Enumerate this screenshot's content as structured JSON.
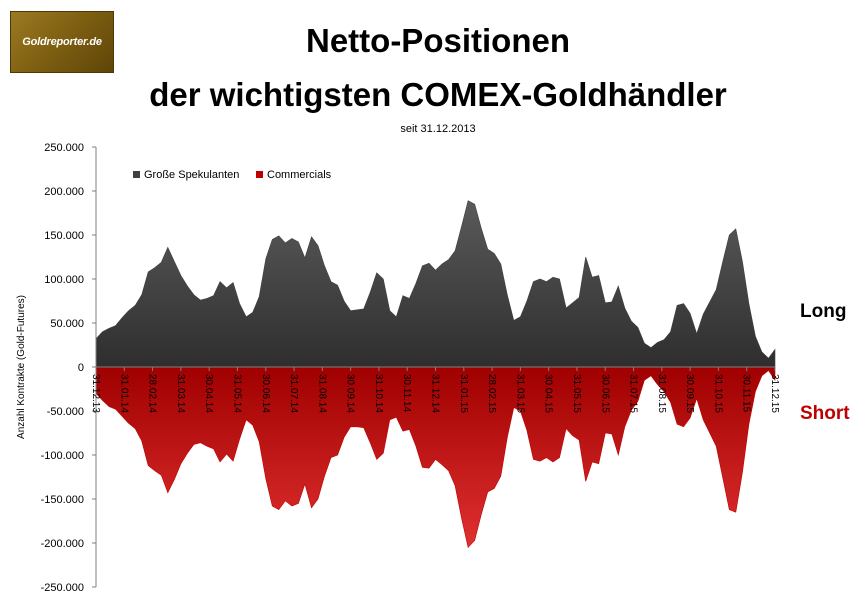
{
  "logo": {
    "text": "Goldreporter.de"
  },
  "title_line1": "Netto-Positionen",
  "title_line2": "der wichtigsten COMEX-Goldhändler",
  "subtitle": "seit 31.12.2013",
  "long_label": "Long",
  "short_label": "Short",
  "colors": {
    "long": "#404040",
    "short": "#c00000",
    "short_label": "#c00000"
  },
  "chart_data": {
    "type": "area",
    "title": "Netto-Positionen der wichtigsten COMEX-Goldhändler",
    "subtitle": "seit 31.12.2013",
    "ylabel": "Anzahl Kontrakte  (Gold-Futures)",
    "ylim": [
      -250000,
      250000
    ],
    "yticks": [
      "250.000",
      "200.000",
      "150.000",
      "100.000",
      "50.000",
      "0",
      "-50.000",
      "-100.000",
      "-150.000",
      "-200.000",
      "-250.000"
    ],
    "ytick_values": [
      250000,
      200000,
      150000,
      100000,
      50000,
      0,
      -50000,
      -100000,
      -150000,
      -200000,
      -250000
    ],
    "xtick_labels": [
      "31.12.13",
      "31.01.14",
      "28.02.14",
      "31.03.14",
      "30.04.14",
      "31.05.14",
      "30.06.14",
      "31.07.14",
      "31.08.14",
      "30.09.14",
      "31.10.14",
      "30.11.14",
      "31.12.14",
      "31.01.15",
      "28.02.15",
      "31.03.15",
      "30.04.15",
      "31.05.15",
      "30.06.15",
      "31.07.15",
      "31.08.15",
      "30.09.15",
      "31.10.15",
      "30.11.15",
      "31.12.15"
    ],
    "legend": [
      "Große Spekulanten",
      "Commercials"
    ],
    "legend_position": "top-left",
    "grid": false,
    "x_weeks": [
      0,
      1,
      2,
      3,
      4,
      5,
      6,
      7,
      8,
      9,
      10,
      11,
      12,
      13,
      14,
      15,
      16,
      17,
      18,
      19,
      20,
      21,
      22,
      23,
      24,
      25,
      26,
      27,
      28,
      29,
      30,
      31,
      32,
      33,
      34,
      35,
      36,
      37,
      38,
      39,
      40,
      41,
      42,
      43,
      44,
      45,
      46,
      47,
      48,
      49,
      50,
      51,
      52,
      53,
      54,
      55,
      56,
      57,
      58,
      59,
      60,
      61,
      62,
      63,
      64,
      65,
      66,
      67,
      68,
      69,
      70,
      71,
      72,
      73,
      74,
      75,
      76,
      77,
      78,
      79,
      80,
      81,
      82,
      83,
      84,
      85,
      86,
      87,
      88,
      89,
      90,
      91,
      92,
      93,
      94,
      95,
      96,
      97,
      98,
      99,
      100,
      101,
      102,
      103,
      104
    ],
    "series": [
      {
        "name": "Große Spekulanten",
        "values": [
          32000,
          40000,
          44000,
          47000,
          56000,
          64000,
          70000,
          82000,
          108000,
          113000,
          119000,
          136000,
          120000,
          104000,
          92000,
          82000,
          76000,
          78000,
          81000,
          97000,
          90000,
          96000,
          72000,
          57000,
          62000,
          80000,
          123000,
          145000,
          149000,
          141000,
          146000,
          142000,
          124000,
          148000,
          138000,
          115000,
          97000,
          93000,
          75000,
          64000,
          65000,
          66000,
          85000,
          107000,
          100000,
          64000,
          57000,
          81000,
          78000,
          95000,
          115000,
          118000,
          110000,
          117000,
          122000,
          132000,
          160000,
          189000,
          185000,
          158000,
          134000,
          129000,
          117000,
          82000,
          53000,
          57000,
          75000,
          97000,
          100000,
          97000,
          102000,
          100000,
          67000,
          73000,
          79000,
          125000,
          102000,
          104000,
          73000,
          74000,
          92000,
          67000,
          52000,
          45000,
          27000,
          22000,
          28000,
          31000,
          40000,
          70000,
          72000,
          61000,
          38000,
          60000,
          74000,
          88000,
          120000,
          150000,
          157000,
          120000,
          72000,
          35000,
          17000,
          10000,
          20000
        ],
        "values_tail_note": ""
      },
      {
        "name": "Commercials",
        "values": [
          -30000,
          -38000,
          -45000,
          -48000,
          -56000,
          -64000,
          -70000,
          -84000,
          -112000,
          -118000,
          -123000,
          -143000,
          -128000,
          -110000,
          -98000,
          -88000,
          -86000,
          -90000,
          -93000,
          -108000,
          -99000,
          -107000,
          -82000,
          -60000,
          -66000,
          -85000,
          -127000,
          -158000,
          -162000,
          -152000,
          -158000,
          -155000,
          -133000,
          -160000,
          -150000,
          -124000,
          -103000,
          -100000,
          -80000,
          -68000,
          -68000,
          -69000,
          -86000,
          -105000,
          -98000,
          -60000,
          -57000,
          -73000,
          -71000,
          -90000,
          -114000,
          -115000,
          -105000,
          -111000,
          -118000,
          -135000,
          -172000,
          -205000,
          -197000,
          -168000,
          -142000,
          -138000,
          -124000,
          -80000,
          -46000,
          -50000,
          -72000,
          -105000,
          -107000,
          -103000,
          -108000,
          -103000,
          -70000,
          -78000,
          -83000,
          -130000,
          -108000,
          -110000,
          -75000,
          -76000,
          -100000,
          -68000,
          -49000,
          -39000,
          -15000,
          -10000,
          -20000,
          -28000,
          -40000,
          -65000,
          -68000,
          -58000,
          -36000,
          -60000,
          -75000,
          -90000,
          -126000,
          -162000,
          -165000,
          -120000,
          -65000,
          -28000,
          -10000,
          -4000,
          -15000
        ]
      }
    ]
  }
}
